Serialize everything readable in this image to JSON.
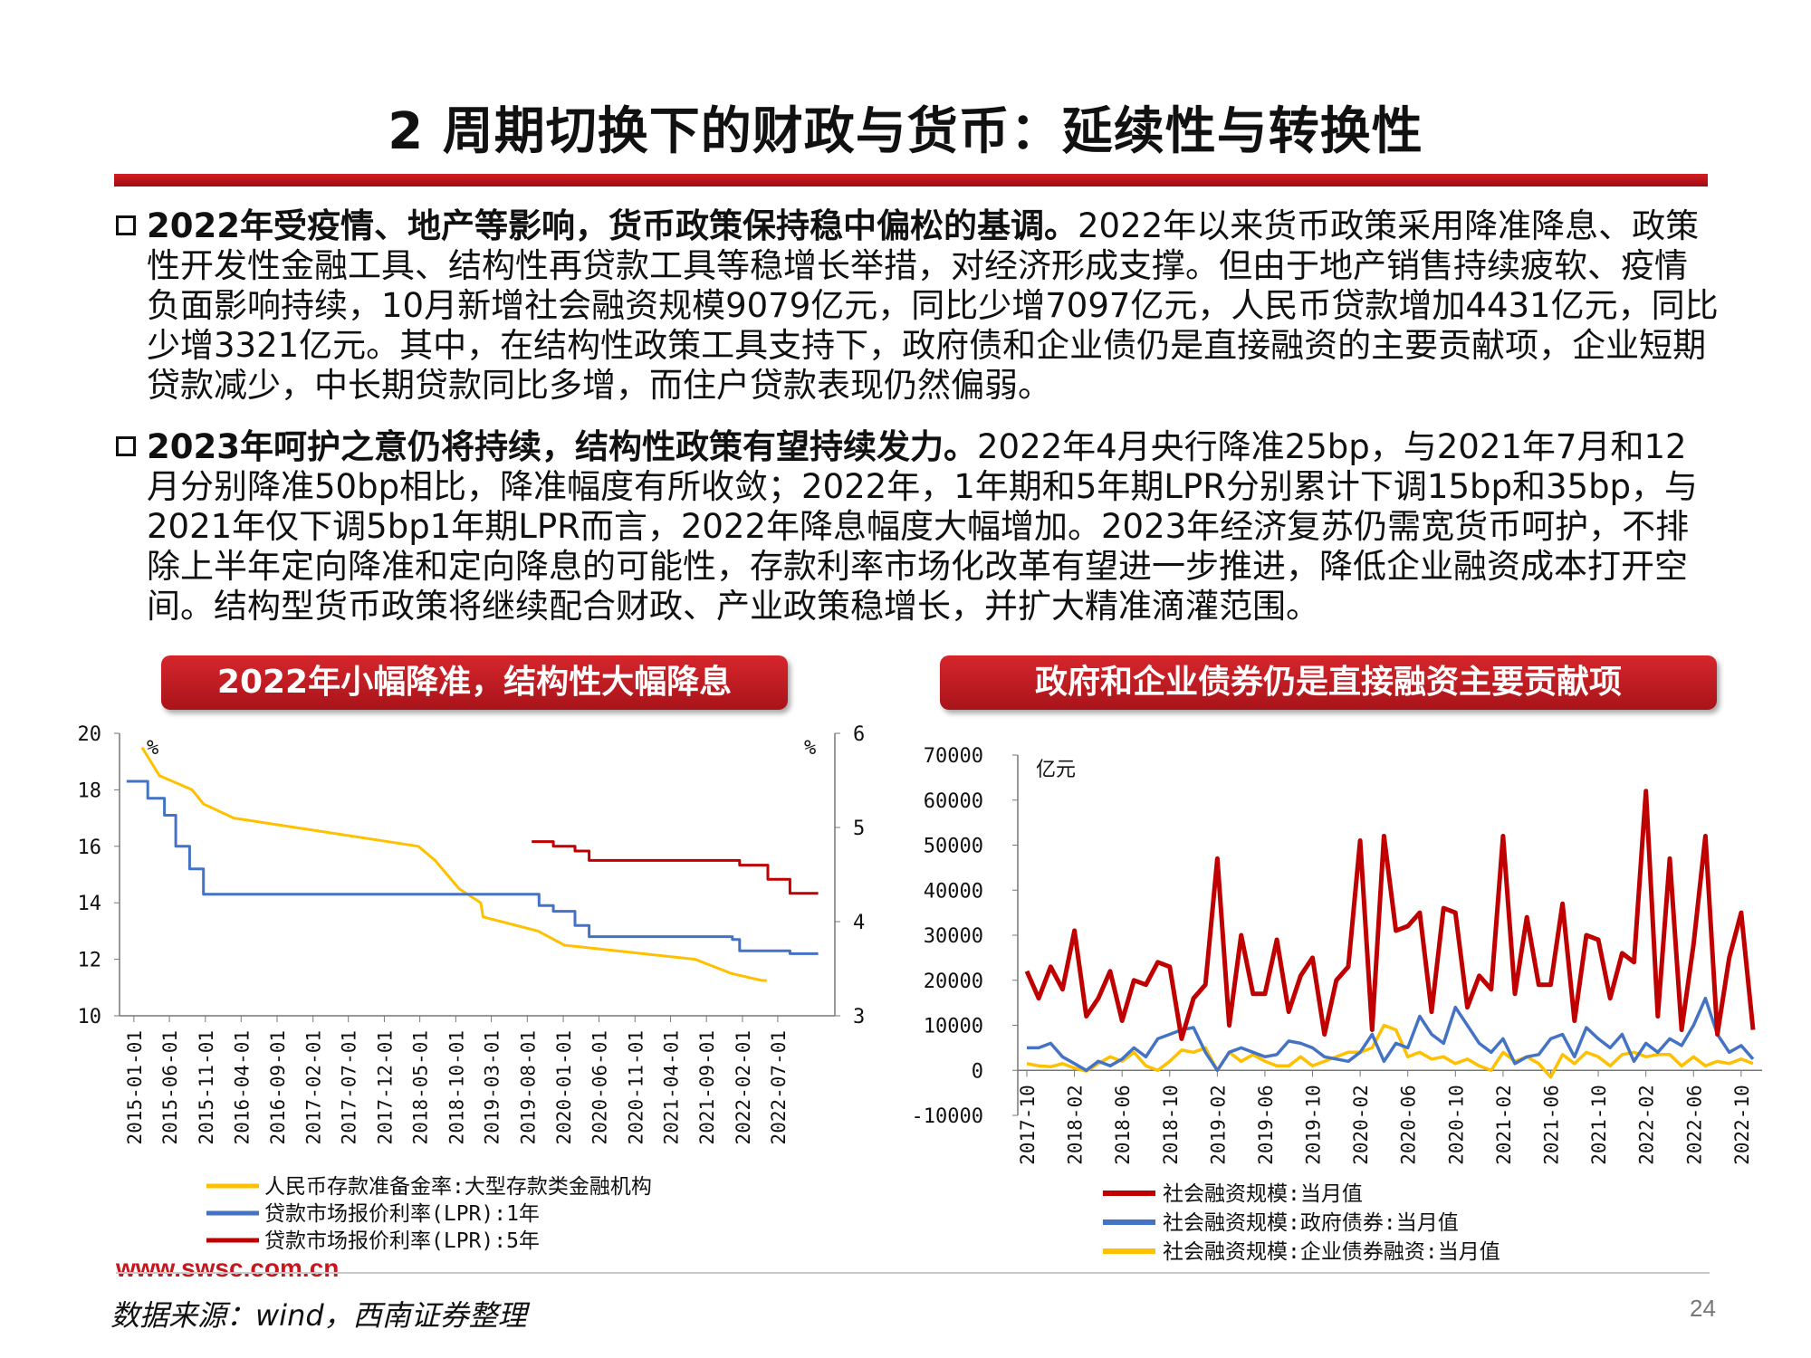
{
  "page": {
    "title": "2 周期切换下的财政与货币：延续性与转换性",
    "paragraphs": [
      {
        "lead": "2022年受疫情、地产等影响，货币政策保持稳中偏松的基调。",
        "body": "2022年以来货币政策采用降准降息、政策性开发性金融工具、结构性再贷款工具等稳增长举措，对经济形成支撑。但由于地产销售持续疲软、疫情负面影响持续，10月新增社会融资规模9079亿元，同比少增7097亿元，人民币贷款增加4431亿元，同比少增3321亿元。其中，在结构性政策工具支持下，政府债和企业债仍是直接融资的主要贡献项，企业短期贷款减少，中长期贷款同比多增，而住户贷款表现仍然偏弱。"
      },
      {
        "lead": "2023年呵护之意仍将持续，结构性政策有望持续发力。",
        "body": "2022年4月央行降准25bp，与2021年7月和12月分别降准50bp相比，降准幅度有所收敛；2022年，1年期和5年期LPR分别累计下调15bp和35bp，与2021年仅下调5bp1年期LPR而言，2022年降息幅度大幅增加。2023年经济复苏仍需宽货币呵护，不排除上半年定向降准和定向降息的可能性，存款利率市场化改革有望进一步推进，降低企业融资成本打开空间。结构型货币政策将继续配合财政、产业政策稳增长，并扩大精准滴灌范围。"
      }
    ],
    "website": "www.swsc.com.cn",
    "source": "数据来源：wind，西南证券整理",
    "page_number": "24"
  },
  "colors": {
    "red": "#c00000",
    "blue": "#4472c4",
    "yellow": "#ffc000",
    "bar_red": "#c8161e"
  },
  "chart_data": [
    {
      "type": "line",
      "title": "2022年小幅降准，结构性大幅降息",
      "left_axis": {
        "unit": "%",
        "ylim": [
          10,
          20
        ],
        "ticks": [
          "10",
          "12",
          "14",
          "16",
          "18",
          "20"
        ]
      },
      "right_axis": {
        "unit": "%",
        "ylim": [
          3,
          6
        ],
        "ticks": [
          "3",
          "4",
          "5",
          "6"
        ]
      },
      "x_ticks": [
        "2015-01-01",
        "2015-06-01",
        "2015-11-01",
        "2016-04-01",
        "2016-09-01",
        "2017-02-01",
        "2017-07-01",
        "2017-12-01",
        "2018-05-01",
        "2018-10-01",
        "2019-03-01",
        "2019-08-01",
        "2020-01-01",
        "2020-06-01",
        "2020-11-01",
        "2021-04-01",
        "2021-09-01",
        "2022-02-01",
        "2022-07-01"
      ],
      "x_range": [
        "2014-11-01",
        "2023-03-01"
      ],
      "series": [
        {
          "name": "人民币存款准备金率:大型存款类金融机构",
          "color": "#ffc000",
          "axis": "left",
          "points": [
            [
              "2015-02-05",
              19.5
            ],
            [
              "2015-04-20",
              18.5
            ],
            [
              "2015-09-06",
              18.0
            ],
            [
              "2015-10-24",
              17.5
            ],
            [
              "2016-03-01",
              17.0
            ],
            [
              "2018-04-25",
              16.0
            ],
            [
              "2018-07-05",
              15.5
            ],
            [
              "2018-10-15",
              14.5
            ],
            [
              "2019-01-15",
              14.0
            ],
            [
              "2019-01-25",
              13.5
            ],
            [
              "2019-09-16",
              13.0
            ],
            [
              "2020-01-06",
              12.5
            ],
            [
              "2021-07-15",
              12.0
            ],
            [
              "2021-12-15",
              11.5
            ],
            [
              "2022-04-25",
              11.25
            ],
            [
              "2022-05-15",
              11.25
            ]
          ]
        },
        {
          "name": "贷款市场报价利率(LPR):1年",
          "color": "#4472c4",
          "axis": "left",
          "points": [
            [
              "2014-12-01",
              18.3
            ],
            [
              "2015-03-01",
              17.7
            ],
            [
              "2015-05-11",
              17.1
            ],
            [
              "2015-06-28",
              16.0
            ],
            [
              "2015-08-26",
              15.2
            ],
            [
              "2015-10-24",
              14.3
            ],
            [
              "2019-08-20",
              14.3
            ],
            [
              "2019-09-20",
              13.9
            ],
            [
              "2019-11-20",
              13.7
            ],
            [
              "2020-02-20",
              13.2
            ],
            [
              "2020-04-20",
              12.8
            ],
            [
              "2021-12-20",
              12.7
            ],
            [
              "2022-01-20",
              12.3
            ],
            [
              "2022-08-22",
              12.2
            ],
            [
              "2022-12-20",
              12.2
            ]
          ]
        },
        {
          "name": "贷款市场报价利率(LPR):5年",
          "color": "#c00000",
          "axis": "right",
          "points": [
            [
              "2019-08-20",
              4.85
            ],
            [
              "2019-10-20",
              4.85
            ],
            [
              "2019-11-20",
              4.8
            ],
            [
              "2020-02-20",
              4.75
            ],
            [
              "2020-04-20",
              4.65
            ],
            [
              "2021-12-20",
              4.65
            ],
            [
              "2022-01-20",
              4.6
            ],
            [
              "2022-05-20",
              4.45
            ],
            [
              "2022-08-22",
              4.3
            ],
            [
              "2022-12-20",
              4.3
            ]
          ]
        }
      ]
    },
    {
      "type": "line",
      "title": "政府和企业债券仍是直接融资主要贡献项",
      "y_unit": "亿元",
      "ylim": [
        -10000,
        70000
      ],
      "y_ticks": [
        "70000",
        "60000",
        "50000",
        "40000",
        "30000",
        "20000",
        "10000",
        "0",
        "-10000"
      ],
      "x_start": "2017-10",
      "x_ticks": [
        "2017-10",
        "2018-02",
        "2018-06",
        "2018-10",
        "2019-02",
        "2019-06",
        "2019-10",
        "2020-02",
        "2020-06",
        "2020-10",
        "2021-02",
        "2021-06",
        "2021-10",
        "2022-02",
        "2022-06",
        "2022-10"
      ],
      "series": [
        {
          "name": "社会融资规模:当月值",
          "color": "#c00000",
          "values": [
            22000,
            16000,
            23000,
            18000,
            31000,
            12000,
            16000,
            22000,
            11000,
            20000,
            19000,
            24000,
            23000,
            7000,
            16000,
            19000,
            47000,
            10000,
            30000,
            17000,
            17000,
            29000,
            13000,
            21000,
            25000,
            8000,
            20000,
            23000,
            51000,
            9000,
            52000,
            31000,
            32000,
            35000,
            13000,
            36000,
            35000,
            14000,
            21000,
            18000,
            52000,
            17000,
            34000,
            19000,
            19000,
            37000,
            11000,
            30000,
            29000,
            16000,
            26000,
            24000,
            62000,
            12000,
            47000,
            9000,
            28000,
            52000,
            8000,
            25000,
            35000,
            9000
          ]
        },
        {
          "name": "社会融资规模:政府债券:当月值",
          "color": "#4472c4",
          "values": [
            5000,
            5000,
            6000,
            3000,
            1500,
            0,
            2000,
            1000,
            2500,
            5000,
            3000,
            7000,
            8000,
            9000,
            9500,
            4000,
            0,
            4000,
            5000,
            4000,
            3000,
            3500,
            6500,
            6000,
            5000,
            3000,
            2500,
            2000,
            4000,
            8000,
            2000,
            6000,
            5000,
            12000,
            8000,
            6000,
            14000,
            10000,
            6000,
            4000,
            7000,
            1500,
            3000,
            3500,
            7000,
            8000,
            3000,
            9500,
            7000,
            5000,
            8000,
            2000,
            6000,
            4000,
            7000,
            5500,
            10000,
            16000,
            8000,
            4000,
            5500,
            2500
          ]
        },
        {
          "name": "社会融资规模:企业债券融资:当月值",
          "color": "#ffc000",
          "values": [
            1500,
            1000,
            800,
            1500,
            500,
            -200,
            1500,
            3000,
            2000,
            4000,
            1000,
            0,
            2000,
            4500,
            4000,
            5000,
            0,
            4000,
            2000,
            3500,
            2000,
            1000,
            1000,
            3000,
            1000,
            2000,
            3000,
            4000,
            4000,
            5000,
            10000,
            9000,
            3000,
            4000,
            2500,
            3000,
            1500,
            2500,
            1000,
            0,
            4000,
            2000,
            3000,
            1500,
            -1500,
            3500,
            1500,
            4000,
            3000,
            1000,
            3500,
            4000,
            3000,
            3500,
            3500,
            1000,
            3000,
            1000,
            2000,
            1500,
            2500,
            1500
          ]
        }
      ]
    }
  ]
}
